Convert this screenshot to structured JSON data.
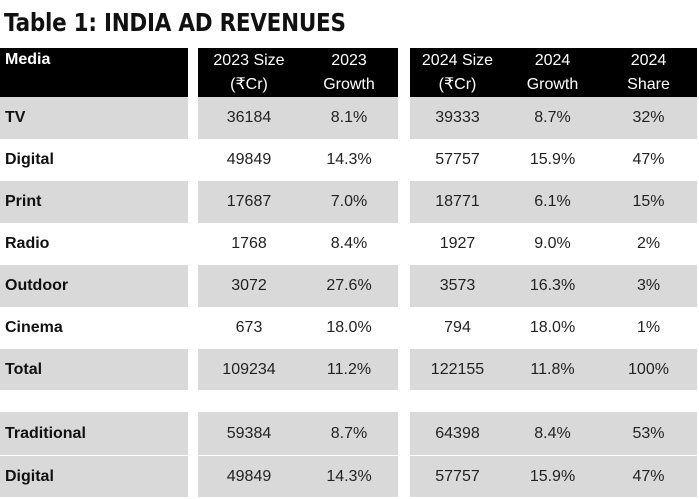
{
  "title": "Table 1: INDIA AD REVENUES",
  "headers": [
    {
      "l1": "Media",
      "l2": ""
    },
    {
      "l1": "2023 Size",
      "l2": "(₹Cr)"
    },
    {
      "l1": "2023",
      "l2": "Growth"
    },
    {
      "l1": "2024 Size",
      "l2": "(₹Cr)"
    },
    {
      "l1": "2024",
      "l2": "Growth"
    },
    {
      "l1": "2024",
      "l2": "Share"
    }
  ],
  "rows": [
    [
      "TV",
      "36184",
      "8.1%",
      "39333",
      "8.7%",
      "32%"
    ],
    [
      "Digital",
      "49849",
      "14.3%",
      "57757",
      "15.9%",
      "47%"
    ],
    [
      "Print",
      "17687",
      "7.0%",
      "18771",
      "6.1%",
      "15%"
    ],
    [
      "Radio",
      "1768",
      "8.4%",
      "1927",
      "9.0%",
      "2%"
    ],
    [
      "Outdoor",
      "3072",
      "27.6%",
      "3573",
      "16.3%",
      "3%"
    ],
    [
      "Cinema",
      "673",
      "18.0%",
      "794",
      "18.0%",
      "1%"
    ],
    [
      "Total",
      "109234",
      "11.2%",
      "122155",
      "11.8%",
      "100%"
    ]
  ],
  "summary_rows": [
    [
      "Traditional",
      "59384",
      "8.7%",
      "64398",
      "8.4%",
      "53%"
    ],
    [
      "Digital",
      "49849",
      "14.3%",
      "57757",
      "15.9%",
      "47%"
    ]
  ],
  "colors": {
    "header_bg": "#000000",
    "stripe": "#d9d9d9"
  }
}
